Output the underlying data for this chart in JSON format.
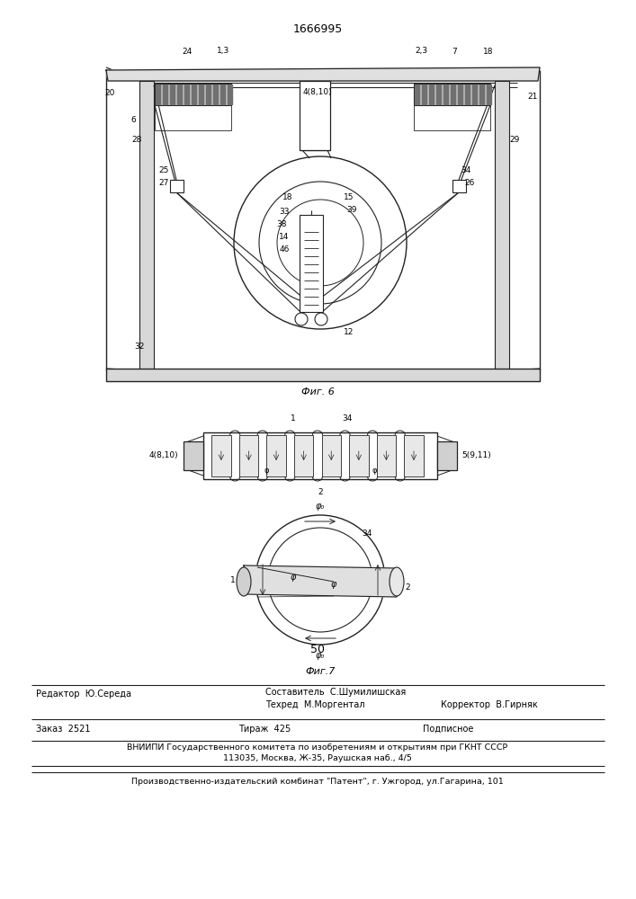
{
  "title": "1666995",
  "fig6_caption": "Фиг. 6",
  "fig7_caption": "Фиг.7",
  "page_number": "50",
  "bg_color": "#ffffff",
  "line_color": "#222222"
}
